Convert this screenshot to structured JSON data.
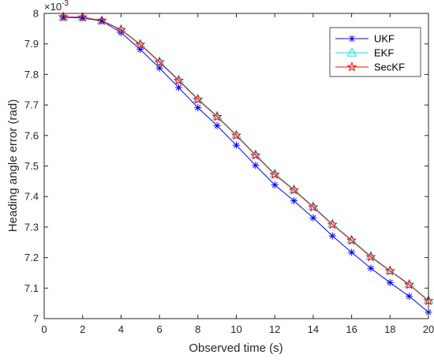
{
  "chart_data": {
    "type": "line",
    "title": "",
    "xlabel": "Observed time (s)",
    "ylabel": "Heading angle error (rad)",
    "y_exponent_base": "×10",
    "y_exponent_power": "-3",
    "xlim": [
      0,
      20
    ],
    "ylim": [
      7.0,
      8.0
    ],
    "x_ticks": [
      0,
      2,
      4,
      6,
      8,
      10,
      12,
      14,
      16,
      18,
      20
    ],
    "y_ticks": [
      7,
      7.1,
      7.2,
      7.3,
      7.4,
      7.5,
      7.6,
      7.7,
      7.8,
      7.9,
      8
    ],
    "y_tick_labels": [
      "7",
      "7.1",
      "7.2",
      "7.3",
      "7.4",
      "7.5",
      "7.6",
      "7.7",
      "7.8",
      "7.9",
      "8"
    ],
    "grid": false,
    "legend_position": "top-right",
    "x": [
      1,
      2,
      3,
      4,
      5,
      6,
      7,
      8,
      9,
      10,
      11,
      12,
      13,
      14,
      15,
      16,
      17,
      18,
      19,
      20
    ],
    "series": [
      {
        "name": "UKF",
        "color": "#0000ff",
        "marker": "asterisk",
        "values": [
          7.987,
          7.985,
          7.975,
          7.937,
          7.882,
          7.821,
          7.757,
          7.691,
          7.632,
          7.568,
          7.502,
          7.438,
          7.386,
          7.33,
          7.271,
          7.217,
          7.165,
          7.118,
          7.073,
          7.021
        ]
      },
      {
        "name": "EKF",
        "color": "#00e6e6",
        "marker": "triangle",
        "values": [
          7.989,
          7.988,
          7.977,
          7.948,
          7.9,
          7.843,
          7.783,
          7.72,
          7.664,
          7.602,
          7.538,
          7.475,
          7.423,
          7.368,
          7.31,
          7.258,
          7.205,
          7.158,
          7.113,
          7.06
        ]
      },
      {
        "name": "SecKF",
        "color": "#ff0000",
        "marker": "star",
        "values": [
          7.988,
          7.987,
          7.976,
          7.946,
          7.898,
          7.84,
          7.78,
          7.718,
          7.661,
          7.6,
          7.535,
          7.472,
          7.421,
          7.365,
          7.308,
          7.256,
          7.202,
          7.156,
          7.111,
          7.058
        ]
      }
    ]
  }
}
